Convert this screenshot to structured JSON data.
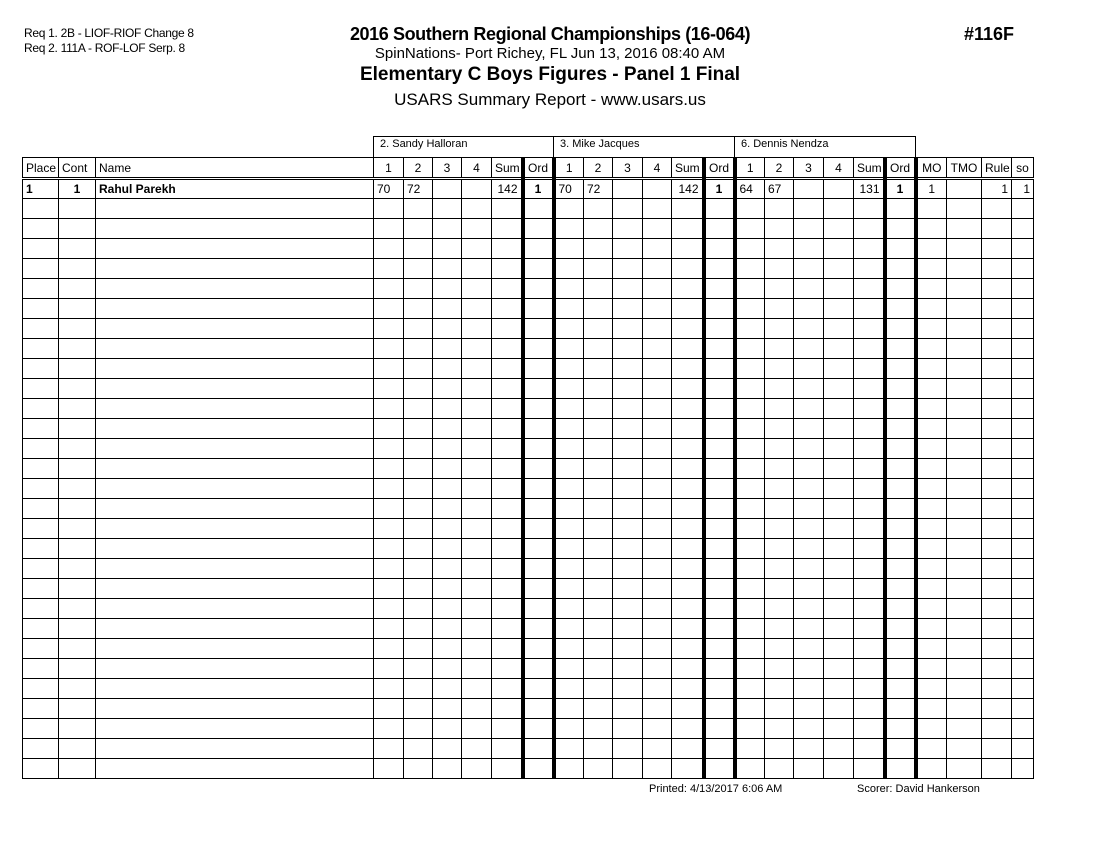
{
  "header": {
    "requirements": [
      "Req  1.  2B - LIOF-RIOF Change 8",
      "Req  2.  111A - ROF-LOF Serp. 8"
    ],
    "title": "2016 Southern Regional Championships (16-064)",
    "venue": "SpinNations- Port Richey, FL  Jun 13, 2016  08:40 AM",
    "event": "Elementary C Boys Figures - Panel 1 Final",
    "report": "USARS Summary Report - www.usars.us",
    "event_number": "#116F"
  },
  "judges": [
    "2.  Sandy Halloran",
    "3.  Mike Jacques",
    "6.  Dennis Nendza"
  ],
  "columns": {
    "lead": [
      "Place",
      "Cont",
      "Name"
    ],
    "judge": [
      "1",
      "2",
      "3",
      "4",
      "Sum",
      "Ord"
    ],
    "tail": [
      "MO",
      "TMO",
      "Rule",
      "so"
    ]
  },
  "rows": [
    {
      "place": "1",
      "cont": "1",
      "name": "Rahul Parekh",
      "judges": [
        [
          "70",
          "72",
          "",
          "",
          "142",
          "1"
        ],
        [
          "70",
          "72",
          "",
          "",
          "142",
          "1"
        ],
        [
          "64",
          "67",
          "",
          "",
          "131",
          "1"
        ]
      ],
      "mo": "1",
      "tmo": "",
      "rule": "1",
      "so": "1"
    }
  ],
  "footer": {
    "printed": "Printed:  4/13/2017  6:06 AM",
    "scorer": "Scorer:    David Hankerson"
  }
}
